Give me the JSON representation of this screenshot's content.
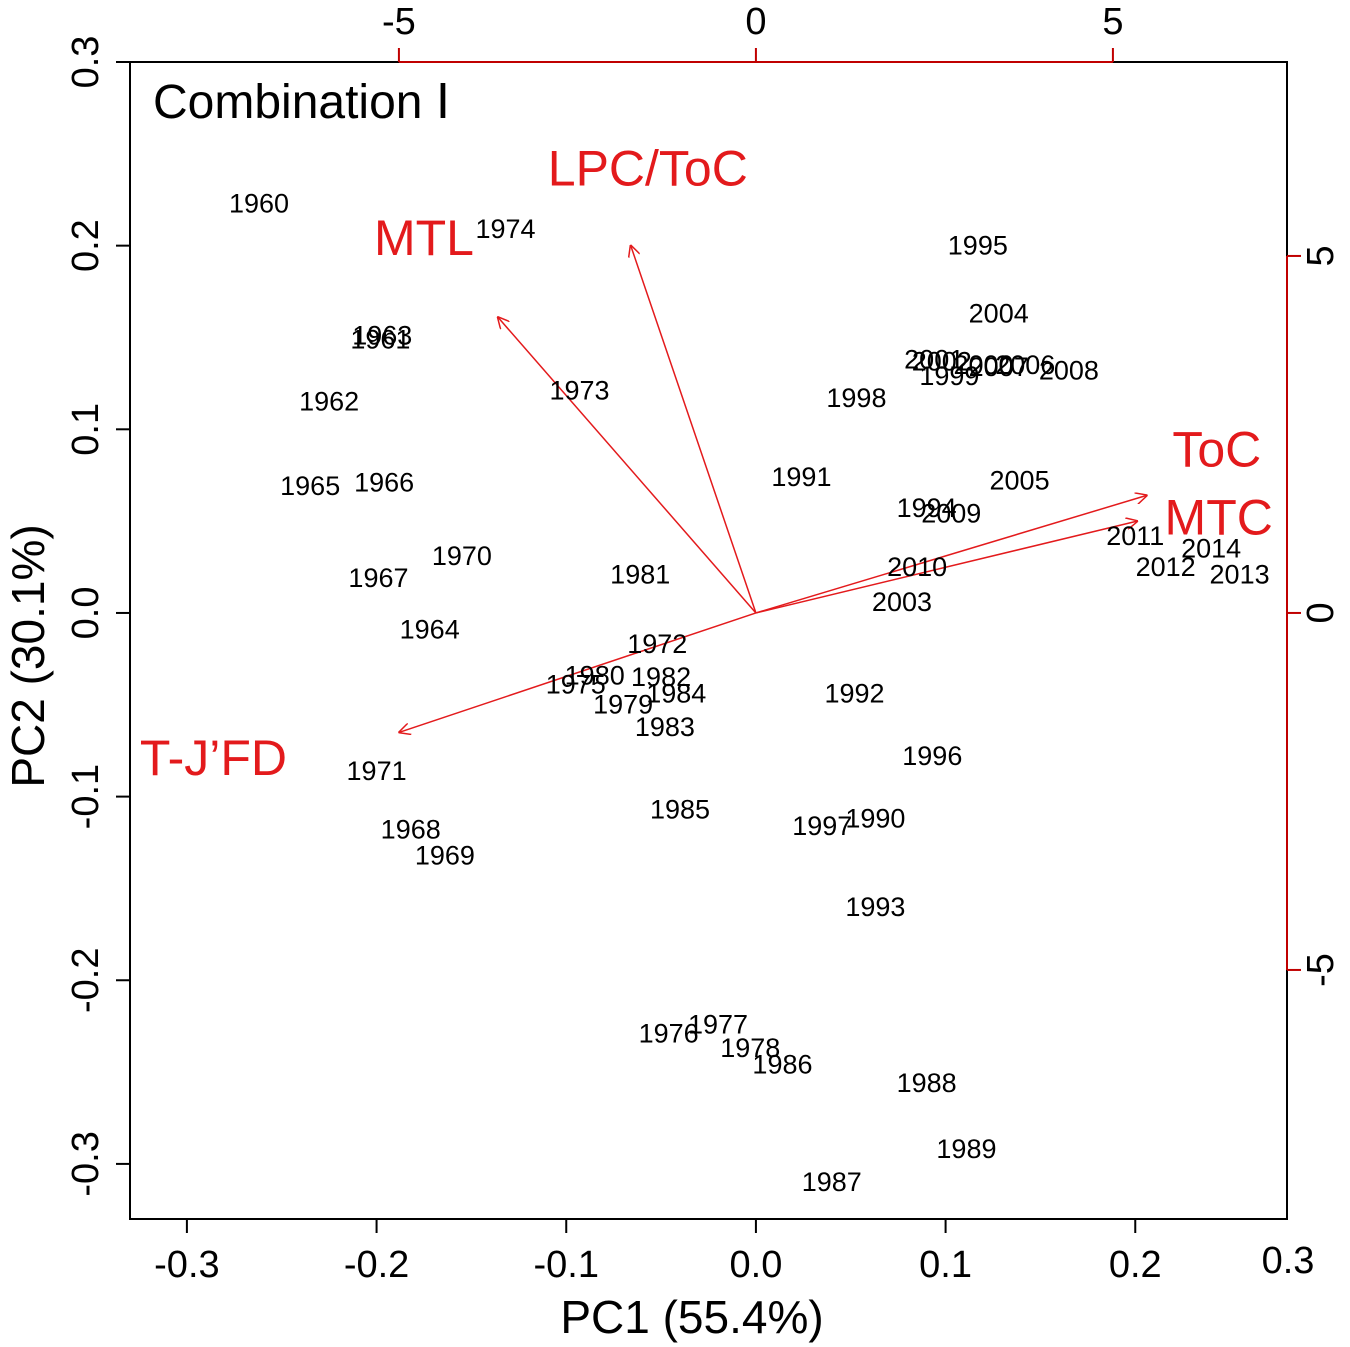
{
  "chart_data": {
    "type": "scatter",
    "subtype": "pca-biplot",
    "title": "Combination Ⅰ",
    "xlabel": "PC1 (55.4%)",
    "ylabel": "PC2 (30.1%)",
    "xlim": [
      -0.33,
      0.28
    ],
    "ylim": [
      -0.33,
      0.3
    ],
    "xticks": [
      -0.3,
      -0.2,
      -0.1,
      0.0,
      0.1,
      0.2
    ],
    "xtick_labels": [
      "-0.3",
      "-0.2",
      "-0.1",
      "0.0",
      "0.1",
      "0.2"
    ],
    "xtick_extra_label": "0.3",
    "yticks": [
      -0.3,
      -0.2,
      -0.1,
      0.0,
      0.1,
      0.2,
      0.3
    ],
    "ytick_labels": [
      "-0.3",
      "-0.2",
      "-0.1",
      "0.0",
      "0.1",
      "0.2",
      "0.3"
    ],
    "top_axis": {
      "ticks": [
        -5,
        0,
        5
      ],
      "labels": [
        "-5",
        "0",
        "5"
      ],
      "color": "#c00000"
    },
    "right_axis": {
      "ticks": [
        -5,
        0,
        5
      ],
      "labels": [
        "-5",
        "0",
        "5"
      ],
      "color": "#c00000"
    },
    "points": [
      {
        "label": "1960",
        "x": -0.262,
        "y": 0.222
      },
      {
        "label": "1974",
        "x": -0.132,
        "y": 0.208
      },
      {
        "label": "1963",
        "x": -0.197,
        "y": 0.15
      },
      {
        "label": "1961",
        "x": -0.198,
        "y": 0.148
      },
      {
        "label": "1962",
        "x": -0.225,
        "y": 0.114
      },
      {
        "label": "1973",
        "x": -0.093,
        "y": 0.12
      },
      {
        "label": "1965",
        "x": -0.235,
        "y": 0.068
      },
      {
        "label": "1966",
        "x": -0.196,
        "y": 0.07
      },
      {
        "label": "1970",
        "x": -0.155,
        "y": 0.03
      },
      {
        "label": "1967",
        "x": -0.199,
        "y": 0.018
      },
      {
        "label": "1964",
        "x": -0.172,
        "y": -0.01
      },
      {
        "label": "1981",
        "x": -0.061,
        "y": 0.02
      },
      {
        "label": "1972",
        "x": -0.052,
        "y": -0.018
      },
      {
        "label": "1975",
        "x": -0.095,
        "y": -0.04
      },
      {
        "label": "1980",
        "x": -0.085,
        "y": -0.035
      },
      {
        "label": "1982",
        "x": -0.05,
        "y": -0.036
      },
      {
        "label": "1979",
        "x": -0.07,
        "y": -0.051
      },
      {
        "label": "1984",
        "x": -0.042,
        "y": -0.045
      },
      {
        "label": "1983",
        "x": -0.048,
        "y": -0.063
      },
      {
        "label": "1971",
        "x": -0.2,
        "y": -0.087
      },
      {
        "label": "1968",
        "x": -0.182,
        "y": -0.119
      },
      {
        "label": "1969",
        "x": -0.164,
        "y": -0.133
      },
      {
        "label": "1985",
        "x": -0.04,
        "y": -0.108
      },
      {
        "label": "1976",
        "x": -0.046,
        "y": -0.23
      },
      {
        "label": "1977",
        "x": -0.02,
        "y": -0.225
      },
      {
        "label": "1978",
        "x": -0.003,
        "y": -0.238
      },
      {
        "label": "1986",
        "x": 0.014,
        "y": -0.247
      },
      {
        "label": "1987",
        "x": 0.04,
        "y": -0.311
      },
      {
        "label": "1988",
        "x": 0.09,
        "y": -0.257
      },
      {
        "label": "1989",
        "x": 0.111,
        "y": -0.293
      },
      {
        "label": "1990",
        "x": 0.063,
        "y": -0.113
      },
      {
        "label": "1991",
        "x": 0.024,
        "y": 0.073
      },
      {
        "label": "1992",
        "x": 0.052,
        "y": -0.045
      },
      {
        "label": "1993",
        "x": 0.063,
        "y": -0.161
      },
      {
        "label": "1994",
        "x": 0.09,
        "y": 0.056
      },
      {
        "label": "1995",
        "x": 0.117,
        "y": 0.199
      },
      {
        "label": "1996",
        "x": 0.093,
        "y": -0.079
      },
      {
        "label": "1997",
        "x": 0.035,
        "y": -0.117
      },
      {
        "label": "1998",
        "x": 0.053,
        "y": 0.116
      },
      {
        "label": "1999",
        "x": 0.102,
        "y": 0.128
      },
      {
        "label": "2000",
        "x": 0.12,
        "y": 0.134
      },
      {
        "label": "2001",
        "x": 0.094,
        "y": 0.137
      },
      {
        "label": "2002",
        "x": 0.098,
        "y": 0.136
      },
      {
        "label": "2003",
        "x": 0.077,
        "y": 0.005
      },
      {
        "label": "2004",
        "x": 0.128,
        "y": 0.162
      },
      {
        "label": "2005",
        "x": 0.139,
        "y": 0.071
      },
      {
        "label": "2006",
        "x": 0.142,
        "y": 0.134
      },
      {
        "label": "2007",
        "x": 0.128,
        "y": 0.133
      },
      {
        "label": "2008",
        "x": 0.165,
        "y": 0.131
      },
      {
        "label": "2009",
        "x": 0.103,
        "y": 0.053
      },
      {
        "label": "2010",
        "x": 0.085,
        "y": 0.024
      },
      {
        "label": "2011",
        "x": 0.2,
        "y": 0.041
      },
      {
        "label": "2012",
        "x": 0.216,
        "y": 0.024
      },
      {
        "label": "2013",
        "x": 0.255,
        "y": 0.02
      },
      {
        "label": "2014",
        "x": 0.24,
        "y": 0.034
      }
    ],
    "loadings": [
      {
        "label": "LPC/ToC",
        "x": -0.066,
        "y": 0.2,
        "label_x": -0.057,
        "label_y": 0.24
      },
      {
        "label": "MTL",
        "x": -0.136,
        "y": 0.161,
        "label_x": -0.175,
        "label_y": 0.202
      },
      {
        "label": "ToC",
        "x": 0.206,
        "y": 0.064,
        "label_x": 0.243,
        "label_y": 0.087
      },
      {
        "label": "MTC",
        "x": 0.201,
        "y": 0.05,
        "label_x": 0.244,
        "label_y": 0.05
      },
      {
        "label": "T-J’FD",
        "x": -0.188,
        "y": -0.065,
        "label_x": -0.286,
        "label_y": -0.081
      }
    ]
  }
}
